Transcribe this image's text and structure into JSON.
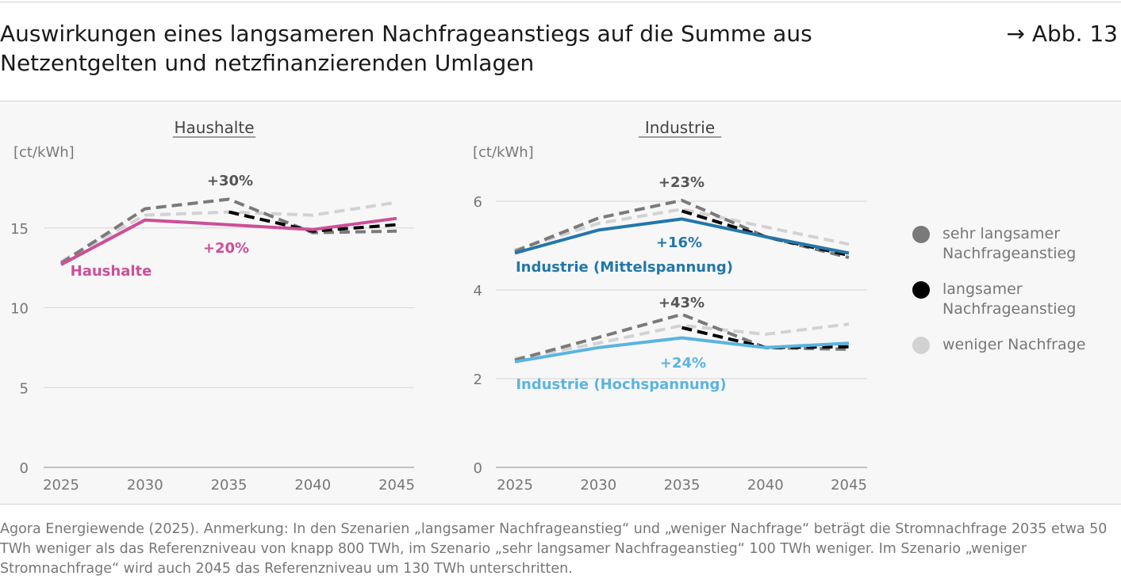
{
  "title": "Auswirkungen eines langsameren Nachfrageanstiegs auf die Summe aus Netzentgelten und netzfinanzierenden Umlagen",
  "figure_ref": "→ Abb. 13",
  "source_note": "Agora Energiewende (2025). Anmerkung: In den Szenarien „langsamer Nachfrageanstieg“ und „weniger Nachfrage“ beträgt die Stromnachfrage 2035 etwa 50 TWh weniger als das Referenzniveau von knapp 800 TWh, im Szenario „sehr langsamer Nachfrageanstieg“ 100 TWh weniger. Im Szenario „weniger Stromnachfrage“ wird auch 2045 das Referenzniveau um 130 TWh unterschritten.",
  "legend": [
    {
      "label": "sehr langsamer Nachfrageanstieg",
      "color": "#7a7a7a"
    },
    {
      "label": "langsamer Nachfrageanstieg",
      "color": "#000000"
    },
    {
      "label": "weniger Nachfrage",
      "color": "#d2d2d2"
    }
  ],
  "chart_data": [
    {
      "type": "line",
      "title": "Haushalte",
      "ylabel": "[ct/kWh]",
      "x": [
        "2025",
        "2030",
        "2035",
        "2040",
        "2045"
      ],
      "ylim": [
        0,
        20
      ],
      "yticks": [
        "0",
        "5",
        "10",
        "15"
      ],
      "series": [
        {
          "name": "Haushalte",
          "color": "#cc4f98",
          "style": "solid",
          "values": [
            12.7,
            15.5,
            15.2,
            14.9,
            15.6
          ]
        },
        {
          "name": "sehr langsamer Nachfrageanstieg",
          "color": "#7a7a7a",
          "style": "dashed",
          "values": [
            12.8,
            16.2,
            16.8,
            14.7,
            14.8
          ]
        },
        {
          "name": "langsamer Nachfrageanstieg",
          "color": "#000000",
          "style": "dashed",
          "values": [
            null,
            null,
            16.0,
            14.8,
            15.2
          ]
        },
        {
          "name": "weniger Nachfrage",
          "color": "#d2d2d2",
          "style": "dashed",
          "values": [
            12.9,
            15.8,
            16.0,
            15.8,
            16.6
          ]
        }
      ],
      "annotations": [
        {
          "text": "+30%",
          "color": "#555555"
        },
        {
          "text": "+20%",
          "color": "#cc4f98"
        },
        {
          "text": "Haushalte",
          "color": "#cc4f98"
        }
      ]
    },
    {
      "type": "line",
      "title": "Industrie",
      "ylabel": "[ct/kWh]",
      "x": [
        "2025",
        "2030",
        "2035",
        "2040",
        "2045"
      ],
      "ylim": [
        0,
        6.8
      ],
      "yticks": [
        "0",
        "2",
        "4",
        "6"
      ],
      "series": [
        {
          "name": "Industrie (Mittelspannung)",
          "color": "#2277aa",
          "style": "solid",
          "values": [
            4.83,
            5.35,
            5.6,
            5.2,
            4.83
          ]
        },
        {
          "name": "sehr langsamer Nachfrageanstieg",
          "color": "#7a7a7a",
          "style": "dashed",
          "values": [
            4.87,
            5.62,
            6.02,
            5.2,
            4.73
          ]
        },
        {
          "name": "langsamer Nachfrageanstieg",
          "color": "#000000",
          "style": "dashed",
          "values": [
            null,
            null,
            5.78,
            5.2,
            4.78
          ]
        },
        {
          "name": "weniger Nachfrage",
          "color": "#d2d2d2",
          "style": "dashed",
          "values": [
            4.9,
            5.5,
            5.82,
            5.42,
            5.03
          ]
        },
        {
          "name": "Industrie (Hochspannung)",
          "color": "#5ab4e2",
          "style": "solid",
          "values": [
            2.38,
            2.7,
            2.92,
            2.7,
            2.8
          ]
        },
        {
          "name": "sehr langsamer Nachfrageanstieg",
          "color": "#7a7a7a",
          "style": "dashed",
          "values": [
            2.42,
            2.93,
            3.45,
            2.7,
            2.66
          ]
        },
        {
          "name": "langsamer Nachfrageanstieg",
          "color": "#000000",
          "style": "dashed",
          "values": [
            null,
            null,
            3.15,
            2.7,
            2.72
          ]
        },
        {
          "name": "weniger Nachfrage",
          "color": "#d2d2d2",
          "style": "dashed",
          "values": [
            2.45,
            2.8,
            3.2,
            3.0,
            3.23
          ]
        }
      ],
      "annotations": [
        {
          "text": "+23%",
          "color": "#555555"
        },
        {
          "text": "+16%",
          "color": "#2277aa"
        },
        {
          "text": "Industrie (Mittelspannung)",
          "color": "#2277aa"
        },
        {
          "text": "+43%",
          "color": "#555555"
        },
        {
          "text": "+24%",
          "color": "#5ab4e2"
        },
        {
          "text": "Industrie (Hochspannung)",
          "color": "#5ab4e2"
        }
      ]
    }
  ]
}
